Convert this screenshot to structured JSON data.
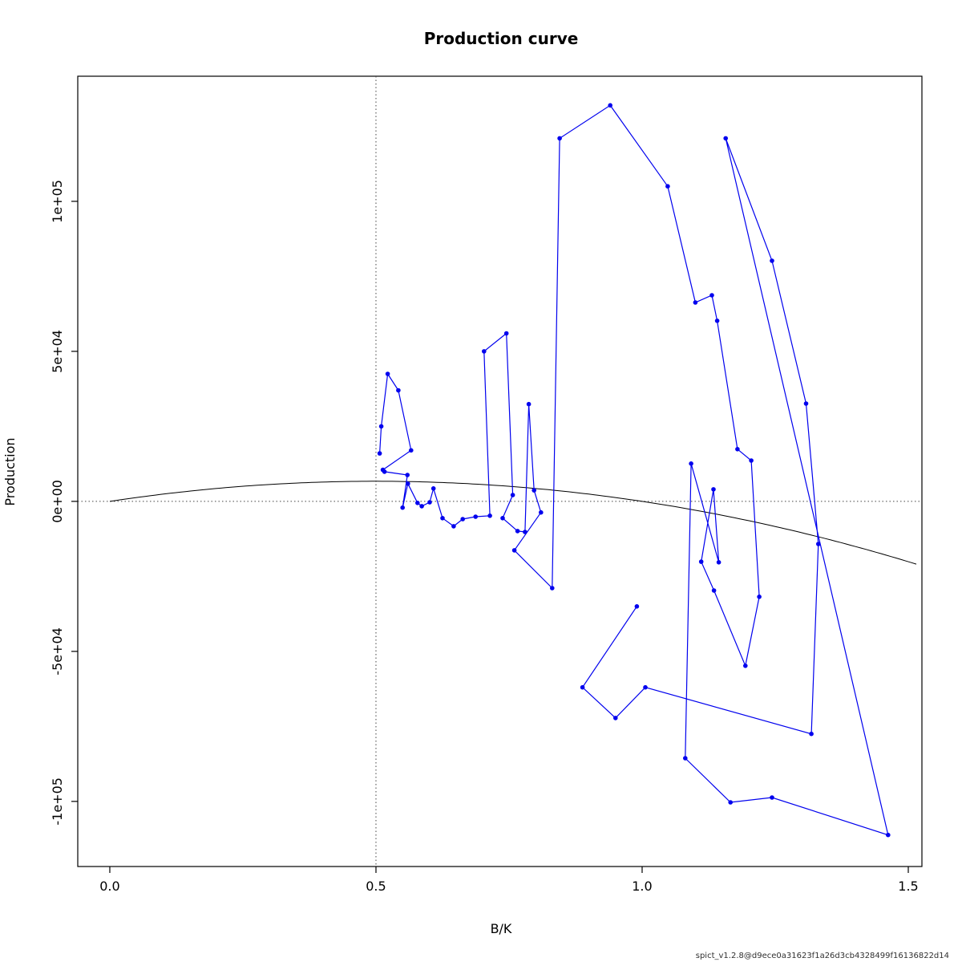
{
  "footer": "spict_v1.2.8@d9ece0a31623f1a26d3cb4328499f16136822d14",
  "chart_data": {
    "type": "line",
    "title": "Production curve",
    "xlabel": "B/K",
    "ylabel": "Production",
    "xlim": [
      -0.0602,
      1.5256
    ],
    "ylim": [
      -121700,
      141700
    ],
    "grid": false,
    "legend": "none",
    "x_ticks": {
      "values": [
        0.0,
        0.5,
        1.0,
        1.5
      ],
      "labels": [
        "0.0",
        "0.5",
        "1.0",
        "1.5"
      ]
    },
    "y_ticks": {
      "values": [
        -100000,
        -50000,
        0,
        50000,
        100000
      ],
      "labels": [
        "-1e+05",
        "-5e+04",
        "0e+00",
        "5e+04",
        "1e+05"
      ]
    },
    "reference_lines": {
      "vertical_x": 0.5,
      "horizontal_y": 0,
      "style": "dotted",
      "color": "#444444"
    },
    "production_curve": {
      "model": "schaefer",
      "formula": "P = 4*MSY*(B/K)*(1-B/K)",
      "msy": 6700,
      "x_range": [
        0.0,
        1.515
      ],
      "color": "#000000"
    },
    "trajectory": {
      "color": "#0000EE",
      "marker": "filled-circle",
      "marker_radius": 2.8,
      "points": [
        [
          0.507,
          16000
        ],
        [
          0.51,
          25000
        ],
        [
          0.522,
          42500
        ],
        [
          0.542,
          37000
        ],
        [
          0.566,
          17000
        ],
        [
          0.513,
          10500
        ],
        [
          0.516,
          9900
        ],
        [
          0.559,
          8800
        ],
        [
          0.55,
          -2100
        ],
        [
          0.56,
          5900
        ],
        [
          0.578,
          -500
        ],
        [
          0.586,
          -1600
        ],
        [
          0.601,
          -300
        ],
        [
          0.608,
          4300
        ],
        [
          0.625,
          -5600
        ],
        [
          0.646,
          -8300
        ],
        [
          0.663,
          -5900
        ],
        [
          0.687,
          -5100
        ],
        [
          0.714,
          -4800
        ],
        [
          0.703,
          50000
        ],
        [
          0.745,
          56000
        ],
        [
          0.757,
          2100
        ],
        [
          0.738,
          -5600
        ],
        [
          0.766,
          -9900
        ],
        [
          0.78,
          -10200
        ],
        [
          0.787,
          32400
        ],
        [
          0.797,
          3700
        ],
        [
          0.81,
          -3700
        ],
        [
          0.76,
          -16300
        ],
        [
          0.831,
          -28900
        ],
        [
          0.845,
          121000
        ],
        [
          0.94,
          132000
        ],
        [
          1.048,
          105000
        ],
        [
          1.1,
          66300
        ],
        [
          1.131,
          68700
        ],
        [
          1.141,
          60200
        ],
        [
          1.179,
          17400
        ],
        [
          1.205,
          13600
        ],
        [
          1.22,
          -31800
        ],
        [
          1.194,
          -54800
        ],
        [
          1.135,
          -29700
        ],
        [
          1.111,
          -20100
        ],
        [
          1.134,
          4000
        ],
        [
          1.144,
          -20300
        ],
        [
          1.092,
          12600
        ],
        [
          1.081,
          -85600
        ],
        [
          1.166,
          -100300
        ],
        [
          1.244,
          -98700
        ],
        [
          1.462,
          -111200
        ],
        [
          1.157,
          121000
        ],
        [
          1.244,
          80200
        ],
        [
          1.308,
          32600
        ],
        [
          1.331,
          -14200
        ],
        [
          1.318,
          -77500
        ],
        [
          1.006,
          -62000
        ],
        [
          0.95,
          -72200
        ],
        [
          0.888,
          -62000
        ],
        [
          0.99,
          -35000
        ]
      ]
    }
  }
}
